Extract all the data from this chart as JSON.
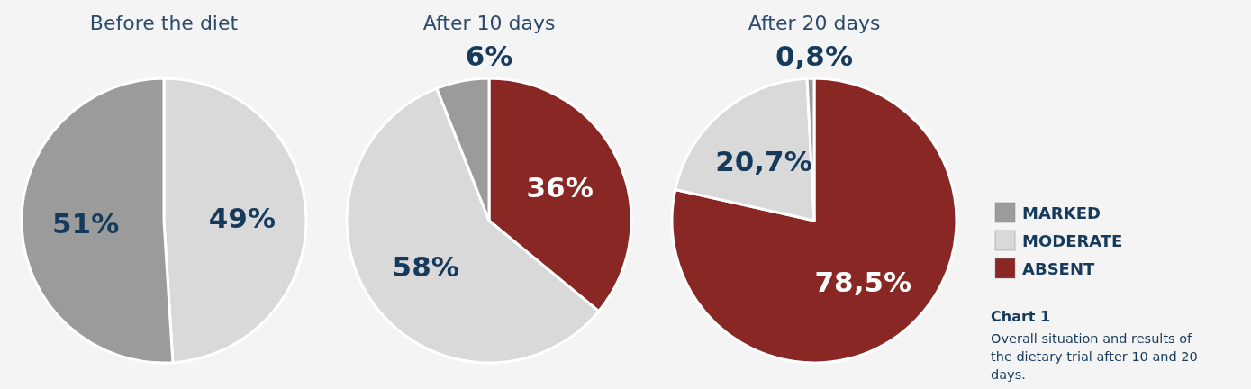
{
  "chart_data": [
    {
      "type": "pie",
      "title": "Before the diet",
      "categories": [
        null,
        null
      ],
      "values": [
        51,
        49
      ],
      "colors": [
        "#9b9b9b",
        "#d9d9d9"
      ],
      "value_labels": [
        "51%",
        "49%"
      ],
      "legend": false
    },
    {
      "type": "pie",
      "title": "After 10 days",
      "categories": [
        null,
        null,
        null
      ],
      "values": [
        6,
        58,
        36
      ],
      "colors": [
        "#9b9b9b",
        "#d9d9d9",
        "#882723"
      ],
      "value_labels": [
        "6%",
        "58%",
        "36%"
      ],
      "legend": false
    },
    {
      "type": "pie",
      "title": "After 20 days",
      "categories": [
        "MARKED",
        "MODERATE",
        "ABSENT"
      ],
      "values": [
        0.8,
        20.7,
        78.5
      ],
      "colors": [
        "#9b9b9b",
        "#d9d9d9",
        "#882723"
      ],
      "value_labels": [
        "0,8%",
        "20,7%",
        "78,5%"
      ],
      "legend": "right",
      "annotations": [
        "Chart 1",
        "Overall situation and results of the dietary trial after 10 and 20 days."
      ]
    }
  ]
}
